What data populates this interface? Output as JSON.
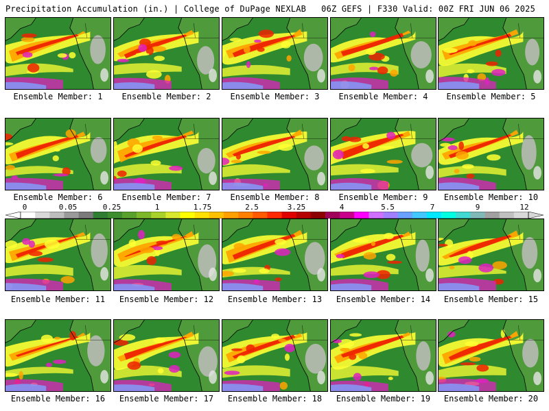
{
  "header": {
    "title_left": "Precipitation Accumulation (in.) | College of DuPage NEXLAB",
    "title_right": "06Z GEFS | F330 Valid: 00Z FRI JUN 06 2025"
  },
  "panels": [
    {
      "label": "Ensemble Member: 1"
    },
    {
      "label": "Ensemble Member: 2"
    },
    {
      "label": "Ensemble Member: 3"
    },
    {
      "label": "Ensemble Member: 4"
    },
    {
      "label": "Ensemble Member: 5"
    },
    {
      "label": "Ensemble Member: 6"
    },
    {
      "label": "Ensemble Member: 7"
    },
    {
      "label": "Ensemble Member: 8"
    },
    {
      "label": "Ensemble Member: 9"
    },
    {
      "label": "Ensemble Member: 10"
    },
    {
      "label": "Ensemble Member: 11"
    },
    {
      "label": "Ensemble Member: 12"
    },
    {
      "label": "Ensemble Member: 13"
    },
    {
      "label": "Ensemble Member: 14"
    },
    {
      "label": "Ensemble Member: 15"
    },
    {
      "label": "Ensemble Member: 16"
    },
    {
      "label": "Ensemble Member: 17"
    },
    {
      "label": "Ensemble Member: 18"
    },
    {
      "label": "Ensemble Member: 19"
    },
    {
      "label": "Ensemble Member: 20"
    }
  ],
  "colorbar": {
    "tick_labels": [
      "0",
      "0.05",
      "0.25",
      "1",
      "1.75",
      "2.5",
      "3.25",
      "4",
      "5.5",
      "7",
      "9",
      "12"
    ],
    "colors": [
      "#ffffff",
      "#d9d9d9",
      "#bdbdbd",
      "#9a9a9a",
      "#7a7a7a",
      "#2e7d32",
      "#3e8e2f",
      "#5aa02c",
      "#7cb82a",
      "#a8d12a",
      "#d8e82c",
      "#ffff00",
      "#ffe000",
      "#ffc000",
      "#ffa000",
      "#ff8000",
      "#ff5a00",
      "#ff2a00",
      "#e00000",
      "#b40000",
      "#8c0000",
      "#a0005a",
      "#c8008c",
      "#ff00ff",
      "#d070ff",
      "#a080ff",
      "#6aa0ff",
      "#40c8ff",
      "#00e8ff",
      "#00ffe0",
      "#40d8d0",
      "#80b8b8",
      "#a0a0a0",
      "#c0c0c0",
      "#d8d8d8"
    ]
  },
  "palette": {
    "ocean_green": "#2f8a2f",
    "land_green": "#4f9a3a",
    "snow_gray": "#bdbdbd",
    "yellow": "#ffff33",
    "orange": "#ffa500",
    "red": "#ee2200",
    "magenta": "#e020c0",
    "light_blue": "#80a0ff",
    "coast": "#000000"
  }
}
